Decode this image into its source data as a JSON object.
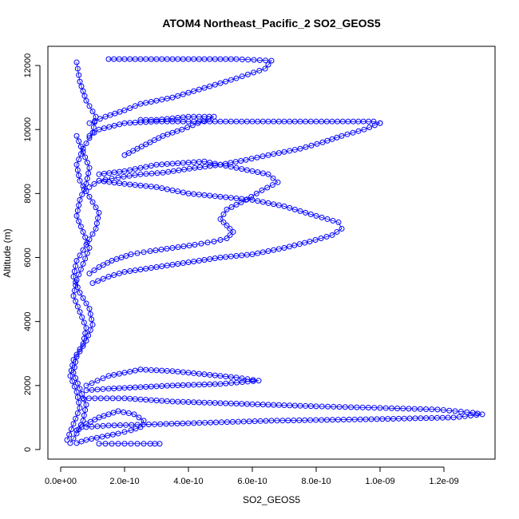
{
  "chart_data": {
    "type": "scatter",
    "title": "ATOM4 Northeast_Pacific_2 SO2_GEOS5",
    "xlabel": "SO2_GEOS5",
    "ylabel": "Altitude (m)",
    "xlim": [
      -4e-11,
      1.36e-09
    ],
    "ylim": [
      -300,
      12600
    ],
    "x_ticks": [
      0,
      2e-10,
      4e-10,
      6e-10,
      8e-10,
      1e-09,
      1.2e-09
    ],
    "x_tick_labels": [
      "0.0e+00",
      "2.0e-10",
      "4.0e-10",
      "6.0e-10",
      "8.0e-10",
      "1.0e-09",
      "1.2e-09"
    ],
    "y_ticks": [
      0,
      2000,
      4000,
      6000,
      8000,
      10000,
      12000
    ],
    "y_tick_labels": [
      "0",
      "2000",
      "4000",
      "6000",
      "8000",
      "10000",
      "12000"
    ],
    "color": "#0000ff",
    "marker": "open-circle",
    "connect_points": true,
    "series": [
      {
        "x": [
          1.5e-10,
          2.5e-10,
          4e-10,
          5.5e-10,
          6.6e-10,
          6.4e-10,
          5.5e-10,
          4.5e-10,
          3.5e-10,
          2.5e-10,
          2e-10,
          1.4e-10,
          9e-11
        ],
        "y": [
          12200,
          12200,
          12200,
          12200,
          12150,
          11900,
          11600,
          11300,
          11000,
          10800,
          10600,
          10400,
          10200
        ]
      },
      {
        "x": [
          9e-11,
          1.2e-10,
          2e-10,
          3e-10,
          4e-10,
          5e-10,
          6e-10,
          7e-10,
          8e-10,
          9e-10,
          9.8e-10,
          1e-09
        ],
        "y": [
          9800,
          10000,
          10200,
          10250,
          10250,
          10250,
          10250,
          10250,
          10250,
          10250,
          10250,
          10200
        ]
      },
      {
        "x": [
          1e-09,
          9.5e-10,
          8.8e-10,
          8.2e-10,
          7.5e-10,
          6.5e-10,
          5.8e-10,
          5e-10,
          4.2e-10,
          3.2e-10,
          2.5e-10,
          1.8e-10,
          1.2e-10,
          9e-11
        ],
        "y": [
          10200,
          10000,
          9800,
          9600,
          9400,
          9200,
          9050,
          8900,
          8800,
          8650,
          8600,
          8500,
          8400,
          8200
        ]
      },
      {
        "x": [
          1.2e-10,
          2e-10,
          3e-10,
          4.5e-10,
          5.5e-10,
          6.5e-10,
          6.8e-10,
          6.3e-10,
          5.8e-10,
          5.2e-10,
          5e-10,
          5.2e-10,
          5.4e-10,
          5.2e-10,
          4.8e-10,
          4.2e-10,
          3.5e-10,
          2.8e-10,
          2.2e-10,
          1.6e-10,
          1.2e-10,
          9e-11
        ],
        "y": [
          8600,
          8700,
          8900,
          9000,
          8800,
          8600,
          8350,
          8100,
          7800,
          7500,
          7200,
          7000,
          6800,
          6600,
          6500,
          6400,
          6300,
          6200,
          6100,
          5900,
          5700,
          5500
        ]
      },
      {
        "x": [
          1.2e-10,
          2e-10,
          3e-10,
          4e-10,
          5e-10,
          6e-10,
          7e-10,
          8e-10,
          8.7e-10,
          8.8e-10,
          8.5e-10,
          7.8e-10,
          7e-10,
          6e-10,
          5e-10,
          4e-10,
          3e-10,
          2e-10,
          1.5e-10,
          1e-10
        ],
        "y": [
          8400,
          8300,
          8200,
          8000,
          7900,
          7800,
          7600,
          7300,
          7100,
          6900,
          6700,
          6500,
          6300,
          6100,
          6000,
          5850,
          5700,
          5550,
          5400,
          5200
        ]
      },
      {
        "x": [
          8e-11,
          1.5e-10,
          2.5e-10,
          3.5e-10,
          4.5e-10,
          5.5e-10,
          6.2e-10,
          5e-10,
          3.5e-10,
          2.5e-10,
          1.5e-10,
          8e-11
        ],
        "y": [
          2000,
          2300,
          2500,
          2450,
          2350,
          2250,
          2150,
          2050,
          2000,
          1950,
          1900,
          1850
        ]
      },
      {
        "x": [
          7e-11,
          2e-10,
          3.5e-10,
          5e-10,
          6.5e-10,
          8e-10,
          1e-09,
          1.18e-09,
          1.29e-09,
          1.32e-09,
          1.23e-09,
          9.9e-10,
          6.6e-10,
          3.3e-10,
          1.5e-10,
          8e-11
        ],
        "y": [
          1600,
          1600,
          1500,
          1450,
          1400,
          1350,
          1300,
          1250,
          1150,
          1100,
          1000,
          950,
          900,
          800,
          750,
          700
        ]
      },
      {
        "x": [
          3e-11,
          5e-11,
          7e-11,
          8e-11,
          6e-11,
          4e-11,
          5e-11,
          8e-11,
          1e-10,
          9e-11,
          6e-11,
          4e-11,
          5e-11,
          8e-11,
          1.1e-10,
          1.2e-10,
          9e-11,
          6e-11,
          5e-11,
          7e-11,
          1e-10,
          1.1e-10,
          8e-11,
          6e-11,
          5e-11
        ],
        "y": [
          200,
          500,
          900,
          1400,
          1900,
          2400,
          2900,
          3400,
          3900,
          4400,
          4900,
          5400,
          5900,
          6400,
          6900,
          7400,
          7900,
          8400,
          8900,
          9400,
          9900,
          10400,
          10900,
          11500,
          12100
        ]
      },
      {
        "x": [
          2e-11,
          4e-11,
          6e-11,
          5e-11,
          3e-11,
          4e-11,
          7e-11,
          8e-11,
          6e-11,
          4e-11,
          5e-11,
          7e-11,
          9e-11,
          7e-11,
          5e-11,
          6e-11,
          8e-11,
          9e-11,
          7e-11,
          5e-11
        ],
        "y": [
          300,
          800,
          1300,
          1800,
          2300,
          2800,
          3300,
          3800,
          4300,
          4800,
          5300,
          5800,
          6300,
          6800,
          7300,
          7800,
          8300,
          8800,
          9300,
          9800
        ]
      },
      {
        "x": [
          1.2e-10,
          1.6e-10,
          2e-10,
          2.4e-10,
          2.8e-10,
          3.1e-10
        ],
        "y": [
          180,
          180,
          180,
          180,
          180,
          180
        ]
      },
      {
        "x": [
          5e-11,
          8e-11,
          1.2e-10,
          1.8e-10,
          2.3e-10,
          2.6e-10,
          2.5e-10,
          2.2e-10,
          1.8e-10,
          1.3e-10,
          8e-11,
          5e-11
        ],
        "y": [
          600,
          800,
          1000,
          1200,
          1100,
          900,
          700,
          600,
          500,
          400,
          300,
          200
        ]
      },
      {
        "x": [
          2.5e-10,
          3e-10,
          3.5e-10,
          4e-10,
          4.5e-10,
          4.8e-10,
          3.8e-10,
          3.2e-10,
          2.8e-10,
          2.4e-10,
          2e-10
        ],
        "y": [
          10300,
          10300,
          10350,
          10400,
          10400,
          10400,
          10000,
          9800,
          9600,
          9400,
          9200
        ]
      }
    ]
  }
}
